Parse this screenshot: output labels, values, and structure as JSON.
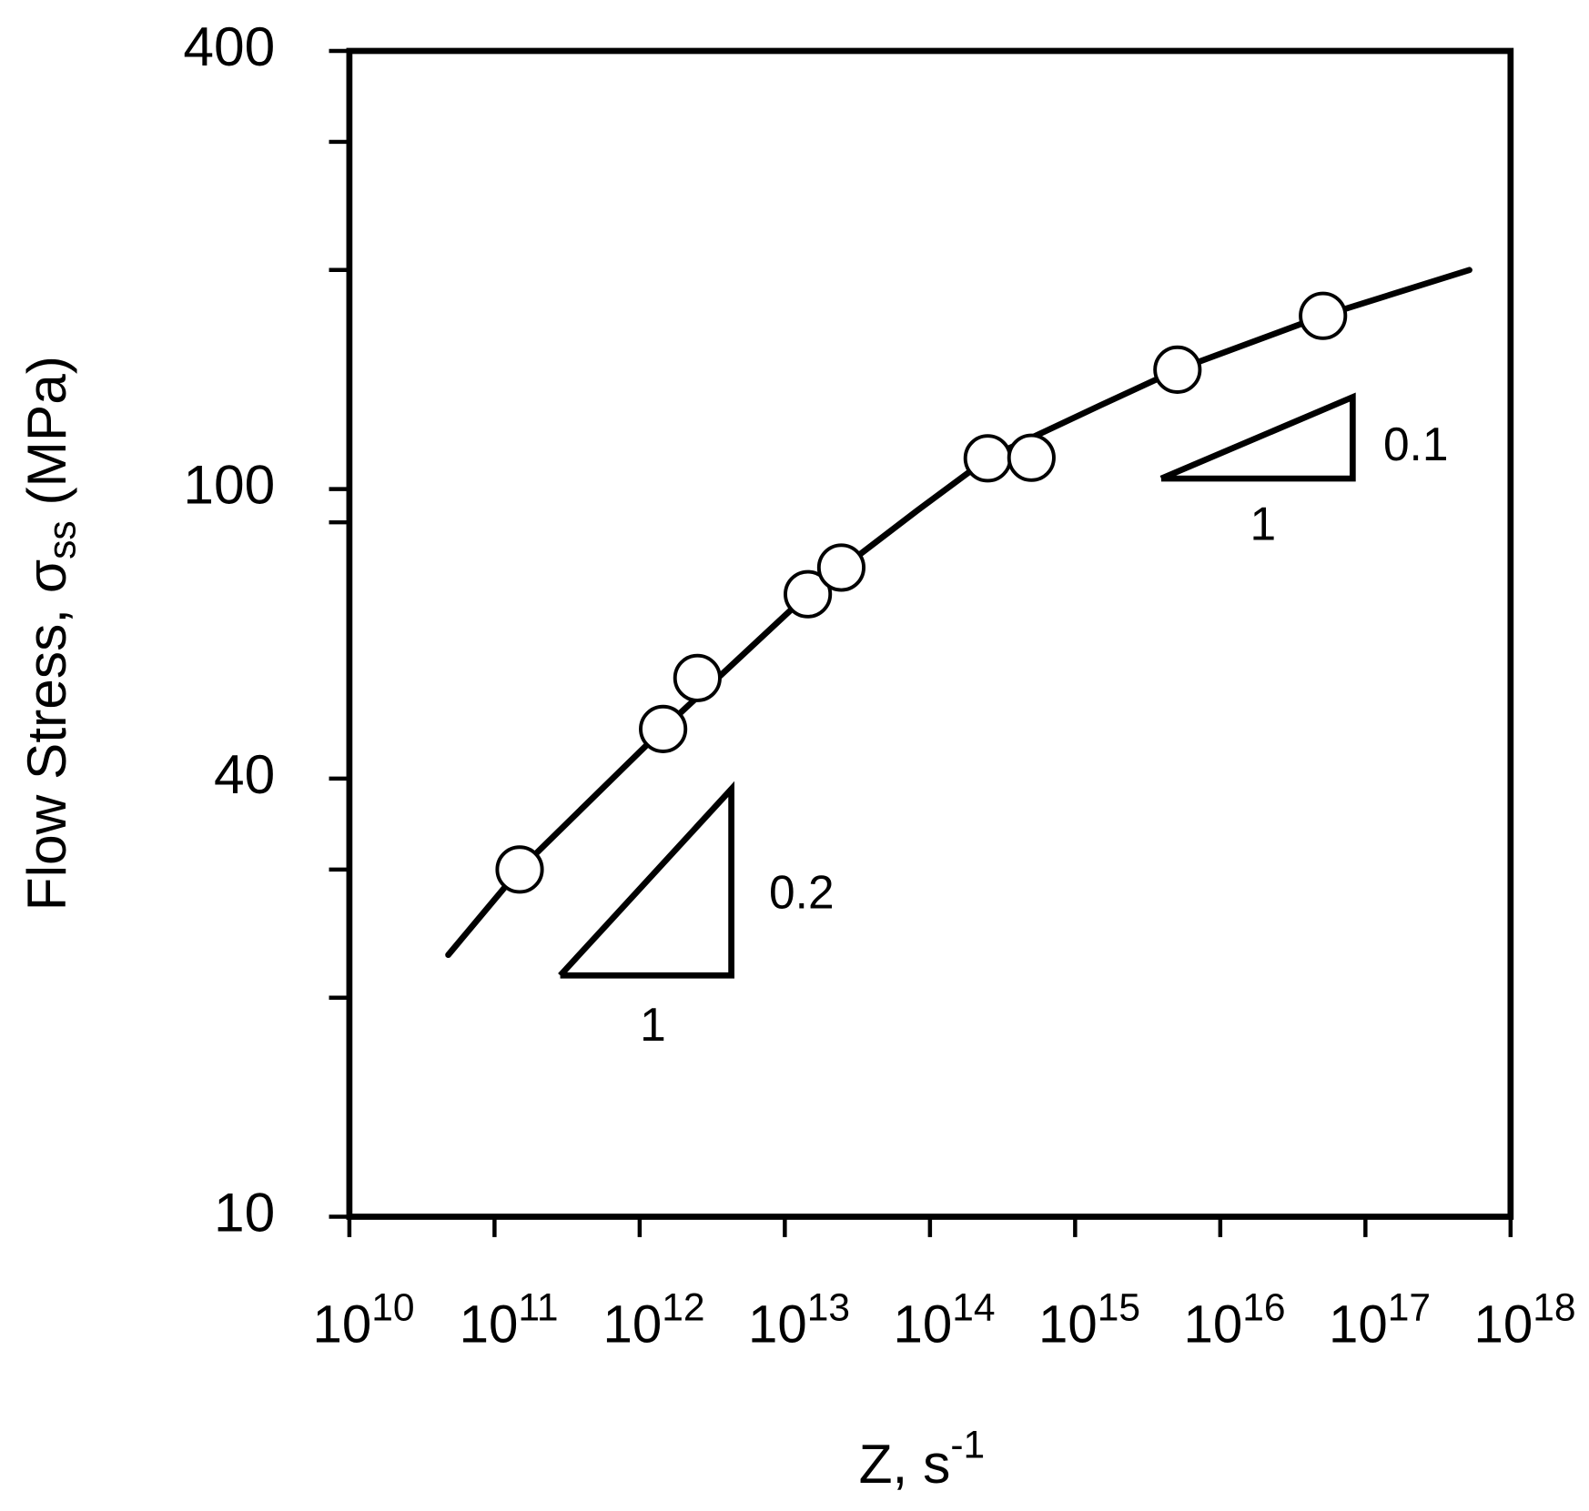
{
  "chart_data": {
    "type": "scatter",
    "xlabel": "Z, s",
    "xlabel_sup": "-1",
    "ylabel": "Flow Stress, σ",
    "ylabel_sub": "ss",
    "ylabel_suffix": " (MPa)",
    "xscale": "log",
    "yscale": "log",
    "xlim": [
      10000000000.0,
      1e+18
    ],
    "xticks": [
      {
        "value": 10000000000.0,
        "label": "10",
        "exponent": "10"
      },
      {
        "value": 100000000000.0,
        "label": "10",
        "exponent": "11"
      },
      {
        "value": 1000000000000.0,
        "label": "10",
        "exponent": "12"
      },
      {
        "value": 10000000000000.0,
        "label": "10",
        "exponent": "13"
      },
      {
        "value": 100000000000000.0,
        "label": "10",
        "exponent": "14"
      },
      {
        "value": 1000000000000000.0,
        "label": "10",
        "exponent": "15"
      },
      {
        "value": 1e+16,
        "label": "10",
        "exponent": "16"
      },
      {
        "value": 1e+17,
        "label": "10",
        "exponent": "17"
      },
      {
        "value": 1e+18,
        "label": "10",
        "exponent": "18"
      }
    ],
    "ylim": [
      10,
      400
    ],
    "yticks": [
      10,
      40,
      100,
      400
    ],
    "yminorticks": [
      20,
      30,
      90,
      200,
      300
    ],
    "series": [
      {
        "kind": "line",
        "color": "#000000",
        "x": [
          48000000000.0,
          149000000000.0,
          1450000000000.0,
          14400000000000.0,
          81000000000000.0,
          250000000000000.0,
          1490000000000000.0,
          5070000000000000.0,
          5.1e+16,
          5.2e+17
        ],
        "values": [
          22.9,
          30.0,
          46.8,
          71.7,
          93.3,
          110.2,
          130.3,
          145.9,
          173,
          200
        ]
      },
      {
        "kind": "scatter",
        "color": "#000000",
        "x": [
          149000000000.0,
          1450000000000.0,
          2500000000000.0,
          14400000000000.0,
          24500000000000.0,
          250000000000000.0,
          500000000000000.0,
          5070000000000000.0,
          5.1e+16
        ],
        "values": [
          30.0,
          46.8,
          55.0,
          71.7,
          78.0,
          110.2,
          110.4,
          145.9,
          173
        ]
      }
    ],
    "annotations": [
      {
        "rise": "0.2",
        "run": "1"
      },
      {
        "rise": "0.1",
        "run": "1"
      }
    ]
  }
}
